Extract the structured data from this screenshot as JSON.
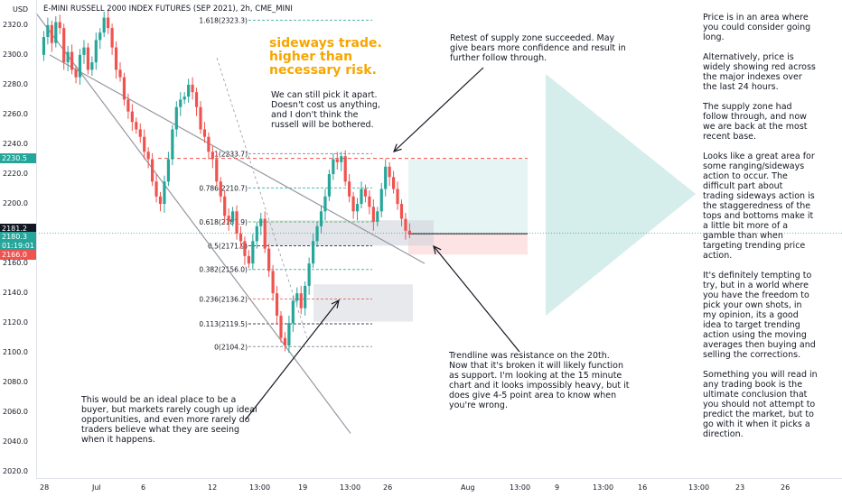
{
  "chart_title": "E-MINI RUSSELL 2000 INDEX FUTURES (SEP 2021), 2h, CME_MINI",
  "currency": "USD",
  "price_tags": [
    {
      "label": "2230.5",
      "color": "#26a69a"
    },
    {
      "label": "2181.2",
      "color": "#131722"
    },
    {
      "label": "2180.3",
      "color": "#26a69a"
    },
    {
      "label": "01:19:01",
      "color": "#26a69a"
    },
    {
      "label": "2166.0",
      "color": "#ef5350"
    }
  ],
  "annotations": {
    "sideways": "sideways trade.\nhigher than\nnecessary risk.",
    "pick_apart": "We can still pick it apart.\nDoesn't cost us anything,\nand I don't think the\nrussell will be bothered.",
    "retest": "Retest of supply zone succeeded. May\ngive bears more confidence and result in\nfurther follow through.",
    "trendline": "Trendline was resistance on the 20th.\nNow that it's broken it will likely function\nas support. I'm looking at the 15 minute\nchart and it looks impossibly heavy, but it\ndoes give 4-5 point area to know when\nyou're wrong.",
    "buyer": "This would be an ideal place to be a\nbuyer, but markets rarely cough up ideal\nopportunities, and even more rarely do\ntraders believe what they are seeing\nwhen it happens.",
    "sidebar": "Price is in an area where\nyou could consider going\nlong.\n\nAlternatively, price is\nwidely showing red across\nthe major indexes over\nthe last 24 hours.\n\nThe supply zone had\nfollow through, and now\nwe are back at the most\nrecent base.\n\nLooks like a great area for\nsome ranging/sideways\naction to occur. The\ndifficult part about\ntrading sideways action is\nthe staggeredness of the\ntops and bottoms make it\na little bit more of a\ngamble than when\ntargeting trending price\naction.\n\nIt's definitely tempting to\ntry, but in a world where\nyou have the freedom to\npick your own shots, in\nmy opinion, its a good\nidea to target trending\naction using the moving\naverages then buying and\nselling the corrections.\n\nSomething you will read in\nany trading book is the\nultimate conclusion that\nyou should not attempt to\npredict the market, but to\ngo with it when it picks a\ndirection."
  },
  "colors": {
    "up": "#26a69a",
    "down": "#ef5350",
    "text": "#131722",
    "warn": "#f7a600",
    "teal_zone": "#b2dfdb",
    "grey_zone": "#d1d4dc"
  },
  "chart_data": {
    "type": "candlestick",
    "title": "E-MINI RUSSELL 2000 INDEX FUTURES (SEP 2021), 2h, CME_MINI",
    "y_ticks": [
      2020,
      2040,
      2060,
      2080,
      2100,
      2120,
      2140,
      2160,
      2180,
      2200,
      2220,
      2240,
      2260,
      2280,
      2300,
      2320
    ],
    "ylim": [
      2016,
      2332
    ],
    "x_tick_labels": [
      "28",
      "Jul",
      "6",
      "12",
      "13:00",
      "19",
      "13:00",
      "26",
      "Aug",
      "13:00",
      "9",
      "13:00",
      "16",
      "13:00",
      "23",
      "26"
    ],
    "fib_levels": [
      {
        "ratio": "1.618",
        "price": 2323.3
      },
      {
        "ratio": "1",
        "price": 2233.7
      },
      {
        "ratio": "0.786",
        "price": 2210.7
      },
      {
        "ratio": "0.618",
        "price": 2187.9
      },
      {
        "ratio": "0.5",
        "price": 2171.9
      },
      {
        "ratio": "0.382",
        "price": 2156.0
      },
      {
        "ratio": "0.236",
        "price": 2136.2
      },
      {
        "ratio": "0.113",
        "price": 2119.5
      },
      {
        "ratio": "0",
        "price": 2104.2
      }
    ],
    "last_price": 2180.3,
    "resistance_line": 2230.5,
    "target_lines": [
      2181.2,
      2166.0
    ],
    "series": [
      {
        "values": [
          2300,
          2312,
          2320,
          2308,
          2322,
          2318,
          2295,
          2302,
          2290,
          2285,
          2300,
          2305,
          2290,
          2295,
          2310,
          2315,
          2325,
          2318,
          2305,
          2290,
          2285,
          2270,
          2262,
          2255,
          2250,
          2245,
          2235,
          2230,
          2215,
          2205,
          2200,
          2215,
          2230,
          2250,
          2265,
          2270,
          2272,
          2280,
          2275,
          2265,
          2250,
          2245,
          2235,
          2230,
          2215,
          2205,
          2192,
          2188,
          2195,
          2180,
          2175,
          2165,
          2160,
          2175,
          2185,
          2190,
          2170,
          2155,
          2140,
          2125,
          2110,
          2105,
          2120,
          2135,
          2140,
          2130,
          2145,
          2160,
          2175,
          2185,
          2195,
          2205,
          2220,
          2230,
          2228,
          2232,
          2215,
          2205,
          2195,
          2200,
          2210,
          2205,
          2198,
          2188,
          2195,
          2210,
          2225,
          2218,
          2210,
          2200,
          2190,
          2182,
          2180
        ]
      }
    ]
  }
}
